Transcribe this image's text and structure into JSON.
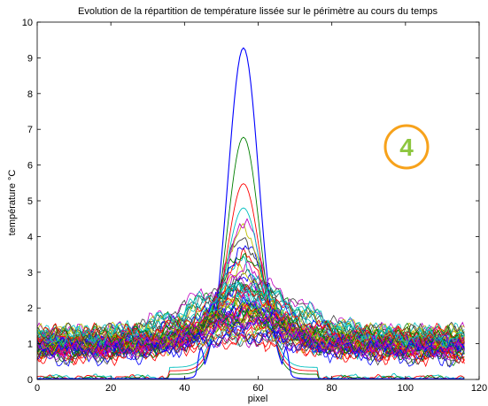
{
  "chart_data": {
    "type": "line",
    "title": "Evolution de la répartition de température lissée sur le périmètre au cours du temps",
    "xlabel": "pixel",
    "ylabel": "température °C",
    "xlim": [
      0,
      120
    ],
    "ylim": [
      0,
      10
    ],
    "xticks": [
      "0",
      "20",
      "40",
      "60",
      "80",
      "100",
      "120"
    ],
    "yticks": [
      "0",
      "1",
      "2",
      "3",
      "4",
      "5",
      "6",
      "7",
      "8",
      "9",
      "10"
    ],
    "grid": false,
    "x_range": [
      0,
      116
    ],
    "peak_center_x": 56,
    "peak_heights": [
      9.28,
      6.78,
      5.48,
      4.8,
      4.18,
      3.92,
      3.72,
      3.54,
      3.38,
      3.22,
      3.08,
      2.96,
      2.85,
      2.74,
      2.64,
      2.54,
      2.44,
      2.35,
      2.26,
      2.17,
      2.08,
      2.0,
      1.92,
      1.84,
      1.76,
      1.69,
      1.62
    ],
    "series_colors": [
      "#0000FF",
      "#007F00",
      "#FF0000",
      "#00BFBF",
      "#BF00BF",
      "#BFBF00",
      "#3F3F3F"
    ],
    "baseline_level": 0.95,
    "annotation": {
      "text": "4",
      "circle_color": "#F7A21B",
      "text_color": "#8DC63F",
      "position": "upper-right"
    }
  }
}
